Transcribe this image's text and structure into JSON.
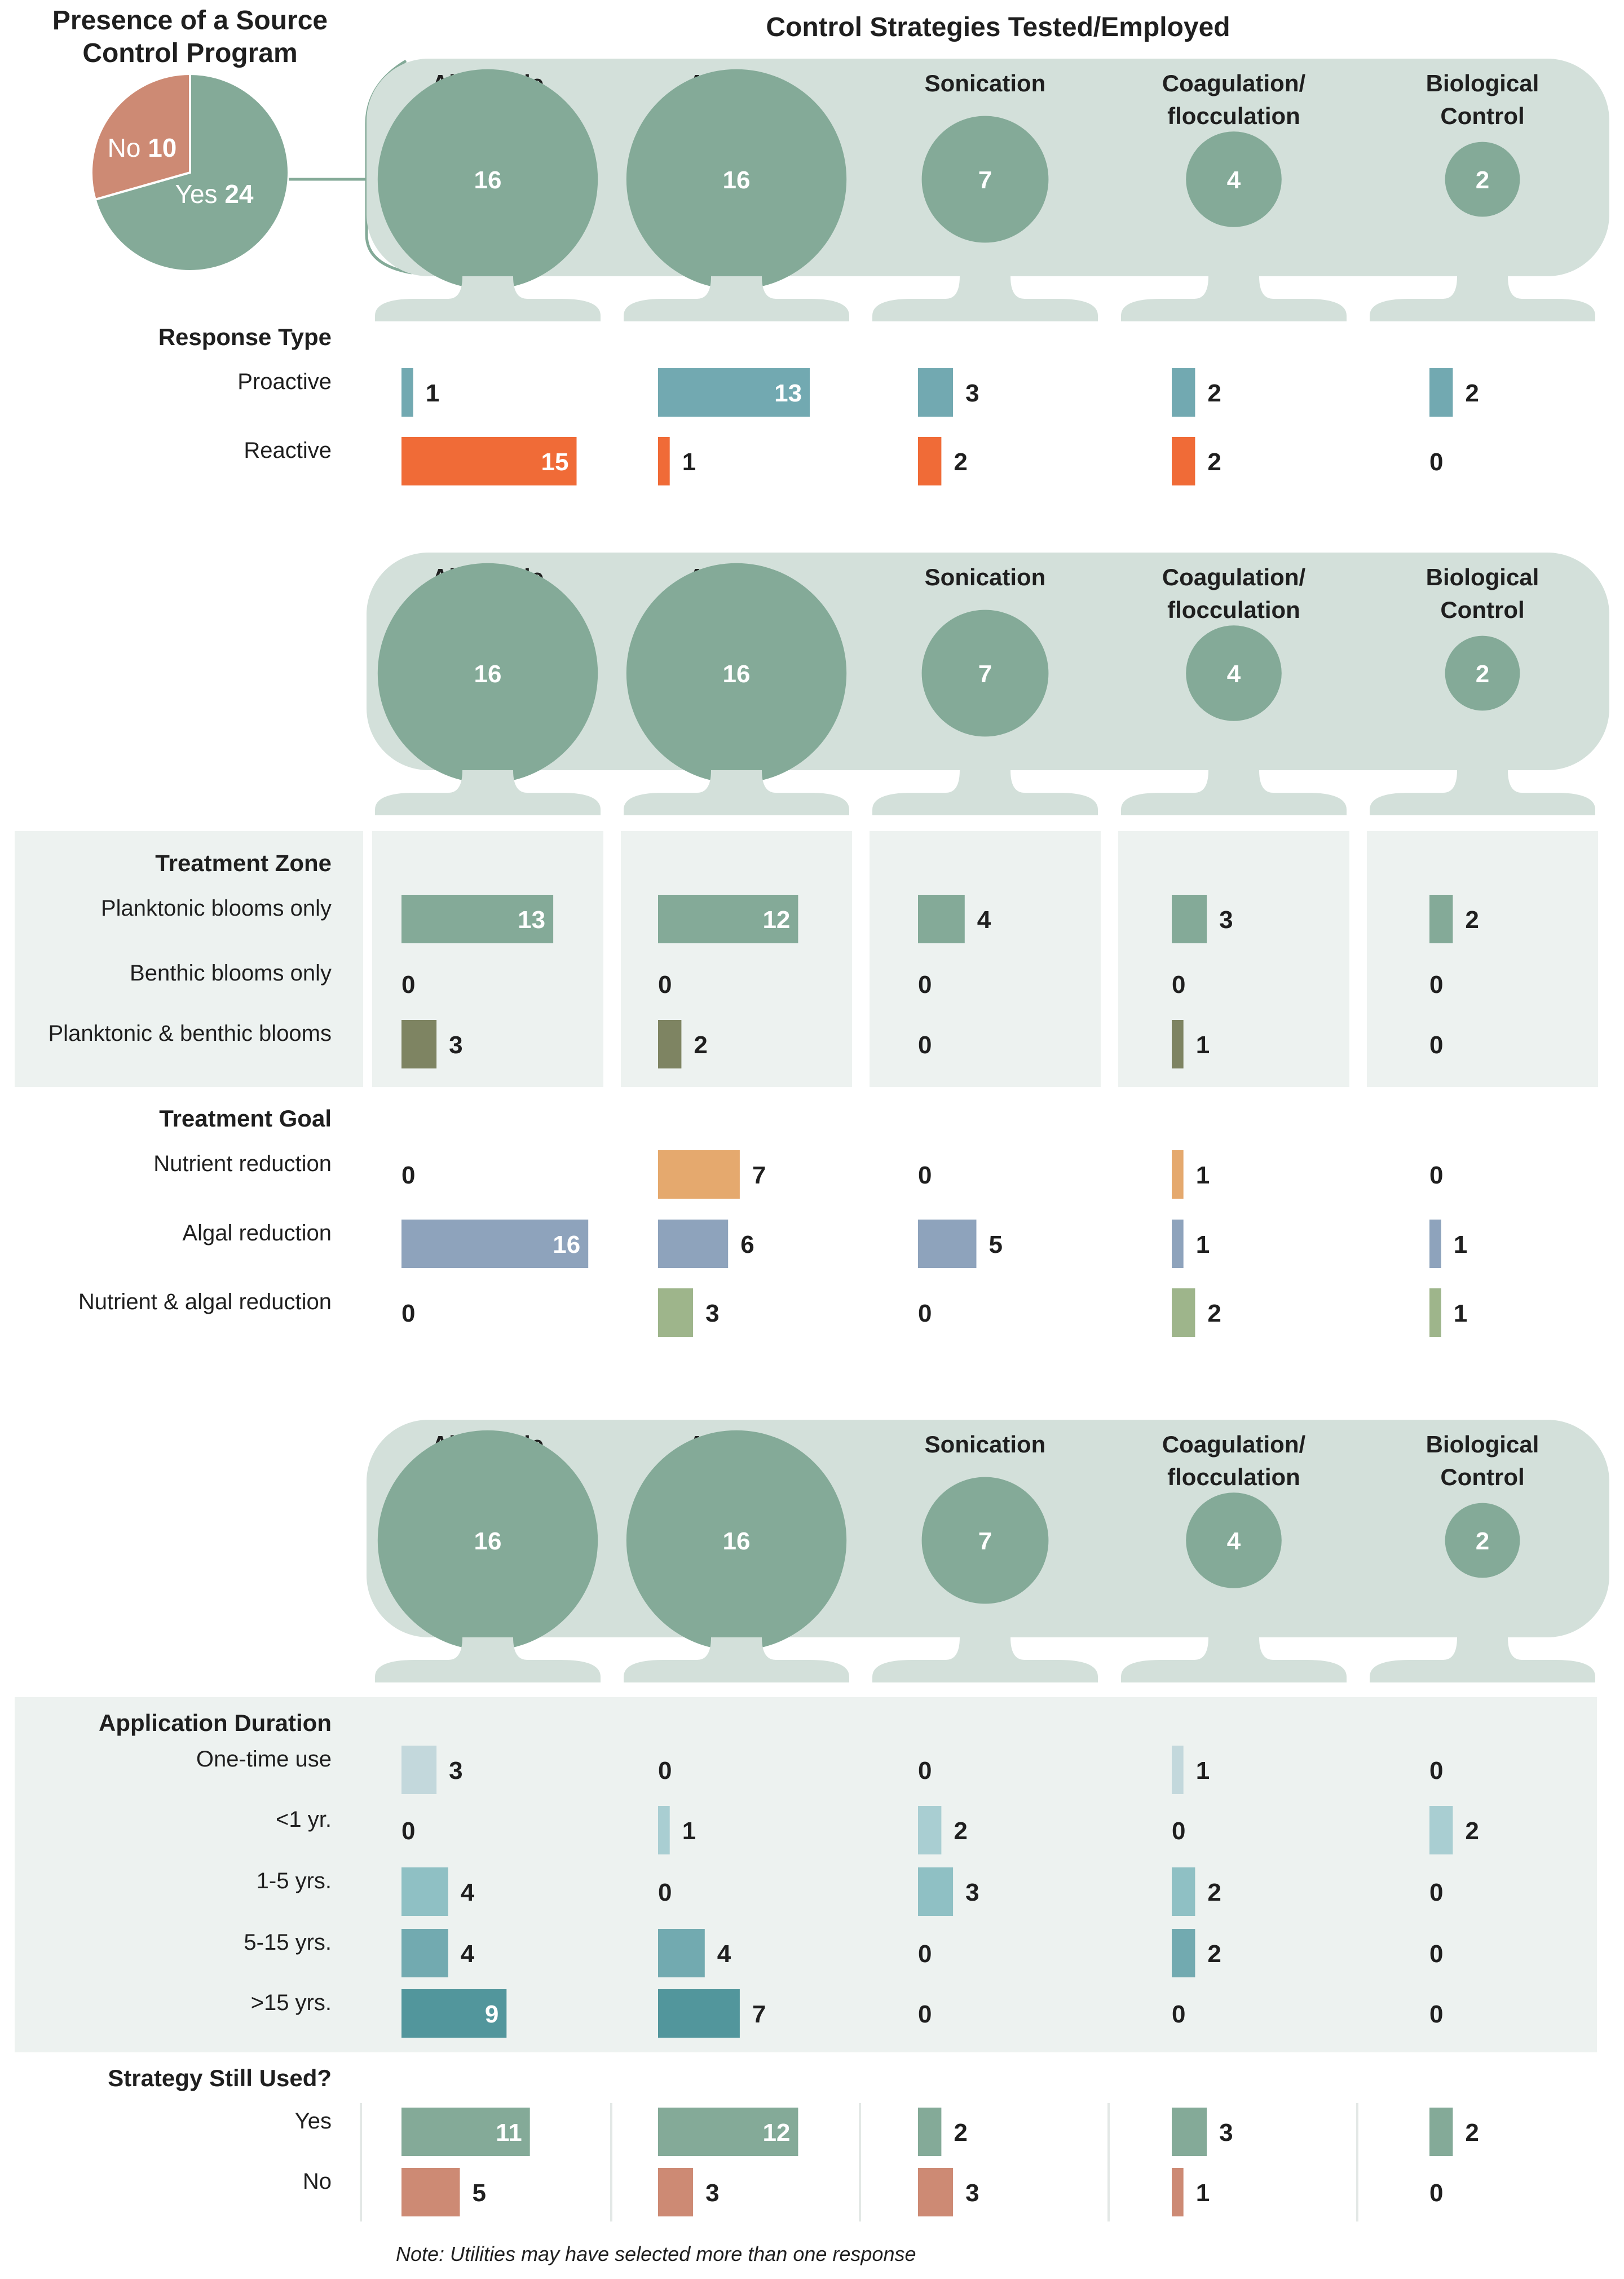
{
  "pie": {
    "title_line1": "Presence of a Source",
    "title_line2": "Control Program",
    "slices": [
      {
        "label": "Yes",
        "value": 24,
        "color": "#84aa98"
      },
      {
        "label": "No",
        "value": 10,
        "color": "#cd8a74"
      }
    ]
  },
  "header_title": "Control Strategies Tested/Employed",
  "strategies": [
    {
      "name_line1": "Algaecide",
      "name_line2": "",
      "count": 16
    },
    {
      "name_line1": "Aeration",
      "name_line2": "",
      "count": 16
    },
    {
      "name_line1": "Sonication",
      "name_line2": "",
      "count": 7
    },
    {
      "name_line1": "Coagulation/",
      "name_line2": "flocculation",
      "count": 4
    },
    {
      "name_line1": "Biological",
      "name_line2": "Control",
      "count": 2
    }
  ],
  "colors": {
    "panel": "#d3e0da",
    "circle": "#84aa98",
    "zone_bg": "#edf2f0",
    "proactive": "#72a9b1",
    "reactive": "#f06b37",
    "planktonic": "#84aa98",
    "benthic": "#7e8462",
    "nutrient": "#e5a96e",
    "algal": "#8ea3bc",
    "nutrient_algal": "#9eb58b",
    "one_time": "#c3d8dc",
    "lt1": "#a9ced2",
    "y1_5": "#8fc0c4",
    "y5_15": "#72aab0",
    "gt15": "#52969c",
    "still_yes": "#84aa98",
    "still_no": "#cd8a74"
  },
  "sections": [
    {
      "title": "Response Type",
      "shaded": false,
      "rows": [
        {
          "label": "Proactive",
          "color": "proactive",
          "values": [
            1,
            13,
            3,
            2,
            2
          ]
        },
        {
          "label": "Reactive",
          "color": "reactive",
          "values": [
            15,
            1,
            2,
            2,
            0
          ]
        }
      ]
    },
    {
      "title": "Treatment Zone",
      "shaded": true,
      "rows": [
        {
          "label": "Planktonic blooms only",
          "color": "planktonic",
          "values": [
            13,
            12,
            4,
            3,
            2
          ]
        },
        {
          "label": "Benthic blooms only",
          "color": "benthic",
          "values": [
            0,
            0,
            0,
            0,
            0
          ]
        },
        {
          "label": "Planktonic & benthic blooms",
          "color": "benthic",
          "values": [
            3,
            2,
            0,
            1,
            0
          ]
        }
      ]
    },
    {
      "title": "Treatment Goal",
      "shaded": false,
      "rows": [
        {
          "label": "Nutrient reduction",
          "color": "nutrient",
          "values": [
            0,
            7,
            0,
            1,
            0
          ]
        },
        {
          "label": "Algal reduction",
          "color": "algal",
          "values": [
            16,
            6,
            5,
            1,
            1
          ]
        },
        {
          "label": "Nutrient & algal reduction",
          "color": "nutrient_algal",
          "values": [
            0,
            3,
            0,
            2,
            1
          ]
        }
      ]
    },
    {
      "title": "Application Duration",
      "shaded": true,
      "rows": [
        {
          "label": "One-time use",
          "color": "one_time",
          "values": [
            3,
            0,
            0,
            1,
            0
          ]
        },
        {
          "label": "<1 yr.",
          "color": "lt1",
          "values": [
            0,
            1,
            2,
            0,
            2
          ]
        },
        {
          "label": "1-5 yrs.",
          "color": "y1_5",
          "values": [
            4,
            0,
            3,
            2,
            0
          ]
        },
        {
          "label": "5-15 yrs.",
          "color": "y5_15",
          "values": [
            4,
            4,
            0,
            2,
            0
          ]
        },
        {
          "label": ">15 yrs.",
          "color": "gt15",
          "values": [
            9,
            7,
            0,
            0,
            0
          ]
        }
      ]
    },
    {
      "title": "Strategy Still Used?",
      "shaded": false,
      "rows": [
        {
          "label": "Yes",
          "color": "still_yes",
          "values": [
            11,
            12,
            2,
            3,
            2
          ]
        },
        {
          "label": "No",
          "color": "still_no",
          "values": [
            5,
            3,
            3,
            1,
            0
          ]
        }
      ]
    }
  ],
  "note": "Note: Utilities may have selected more than one response",
  "chart_data": [
    {
      "type": "pie",
      "title": "Presence of a Source Control Program",
      "categories": [
        "Yes",
        "No"
      ],
      "values": [
        24,
        10
      ]
    },
    {
      "type": "bar",
      "title": "Control Strategies Tested/Employed",
      "categories": [
        "Algaecide",
        "Aeration",
        "Sonication",
        "Coagulation/flocculation",
        "Biological Control"
      ],
      "values": [
        16,
        16,
        7,
        4,
        2
      ]
    },
    {
      "type": "bar",
      "title": "Response Type",
      "categories": [
        "Algaecide",
        "Aeration",
        "Sonication",
        "Coagulation/flocculation",
        "Biological Control"
      ],
      "series": [
        {
          "name": "Proactive",
          "values": [
            1,
            13,
            3,
            2,
            2
          ]
        },
        {
          "name": "Reactive",
          "values": [
            15,
            1,
            2,
            2,
            0
          ]
        }
      ]
    },
    {
      "type": "bar",
      "title": "Treatment Zone",
      "categories": [
        "Algaecide",
        "Aeration",
        "Sonication",
        "Coagulation/flocculation",
        "Biological Control"
      ],
      "series": [
        {
          "name": "Planktonic blooms only",
          "values": [
            13,
            12,
            4,
            3,
            2
          ]
        },
        {
          "name": "Benthic blooms only",
          "values": [
            0,
            0,
            0,
            0,
            0
          ]
        },
        {
          "name": "Planktonic & benthic blooms",
          "values": [
            3,
            2,
            0,
            1,
            0
          ]
        }
      ]
    },
    {
      "type": "bar",
      "title": "Treatment Goal",
      "categories": [
        "Algaecide",
        "Aeration",
        "Sonication",
        "Coagulation/flocculation",
        "Biological Control"
      ],
      "series": [
        {
          "name": "Nutrient reduction",
          "values": [
            0,
            7,
            0,
            1,
            0
          ]
        },
        {
          "name": "Algal reduction",
          "values": [
            16,
            6,
            5,
            1,
            1
          ]
        },
        {
          "name": "Nutrient & algal reduction",
          "values": [
            0,
            3,
            0,
            2,
            1
          ]
        }
      ]
    },
    {
      "type": "bar",
      "title": "Application Duration",
      "categories": [
        "Algaecide",
        "Aeration",
        "Sonication",
        "Coagulation/flocculation",
        "Biological Control"
      ],
      "series": [
        {
          "name": "One-time use",
          "values": [
            3,
            0,
            0,
            1,
            0
          ]
        },
        {
          "name": "<1 yr.",
          "values": [
            0,
            1,
            2,
            0,
            2
          ]
        },
        {
          "name": "1-5 yrs.",
          "values": [
            4,
            0,
            3,
            2,
            0
          ]
        },
        {
          "name": "5-15 yrs.",
          "values": [
            4,
            4,
            0,
            2,
            0
          ]
        },
        {
          "name": ">15 yrs.",
          "values": [
            9,
            7,
            0,
            0,
            0
          ]
        }
      ]
    },
    {
      "type": "bar",
      "title": "Strategy Still Used?",
      "categories": [
        "Algaecide",
        "Aeration",
        "Sonication",
        "Coagulation/flocculation",
        "Biological Control"
      ],
      "series": [
        {
          "name": "Yes",
          "values": [
            11,
            12,
            2,
            3,
            2
          ]
        },
        {
          "name": "No",
          "values": [
            5,
            3,
            3,
            1,
            0
          ]
        }
      ]
    }
  ]
}
